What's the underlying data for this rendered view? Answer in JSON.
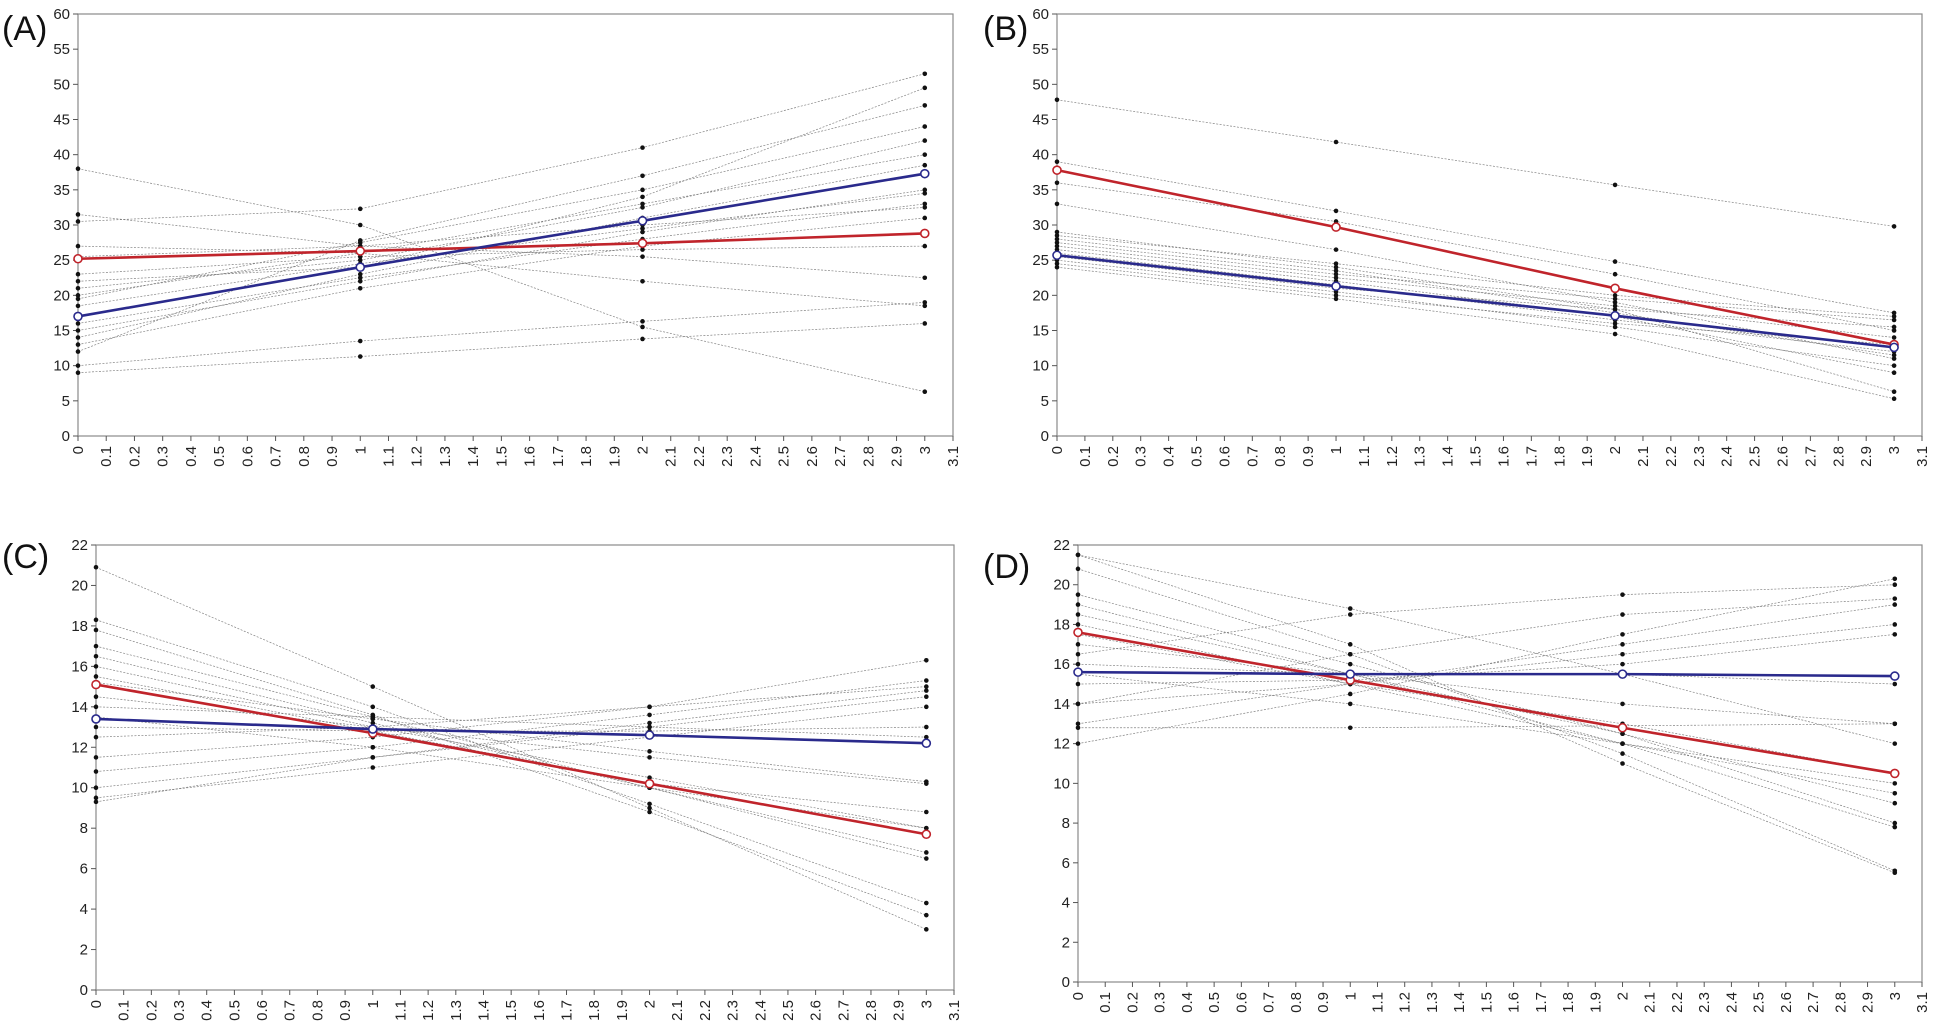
{
  "colors": {
    "red_series": "#c0242b",
    "blue_series": "#2a2a8c",
    "individual_lines": "#6e6e6e",
    "frame": "#8a8a8a"
  },
  "chart_data": [
    {
      "type": "line",
      "panel": "(A)",
      "title": "",
      "xlabel": "",
      "ylabel": "",
      "xlim": [
        0,
        3.1
      ],
      "ylim": [
        0,
        60
      ],
      "x_ticks": [
        "0",
        "0.1",
        "0.2",
        "0.3",
        "0.4",
        "0.5",
        "0.6",
        "0.7",
        "0.8",
        "0.9",
        "1",
        "1.1",
        "1.2",
        "1.3",
        "1.4",
        "1.5",
        "1.6",
        "1.7",
        "1.8",
        "1.9",
        "2",
        "2.1",
        "2.2",
        "2.3",
        "2.4",
        "2.5",
        "2.6",
        "2.7",
        "2.8",
        "2.9",
        "3",
        "3.1"
      ],
      "y_ticks": [
        "0",
        "5",
        "10",
        "15",
        "20",
        "25",
        "30",
        "35",
        "40",
        "45",
        "50",
        "55",
        "60"
      ],
      "x": [
        0,
        1,
        2,
        3
      ],
      "series": [
        {
          "color": "#c0242b",
          "values": [
            25.2,
            26.3,
            27.4,
            28.8
          ]
        },
        {
          "color": "#2a2a8c",
          "values": [
            17.0,
            24.0,
            30.6,
            37.3
          ]
        }
      ],
      "individual_trajectories": [
        [
          38.0,
          30.0,
          15.5,
          6.3
        ],
        [
          31.5,
          27.0,
          25.5,
          22.5
        ],
        [
          10.0,
          13.5,
          16.3,
          19.0
        ],
        [
          9.0,
          11.3,
          13.8,
          16.0
        ],
        [
          30.5,
          32.3,
          41.0,
          51.5
        ],
        [
          12.0,
          27.8,
          37.0,
          47.0
        ],
        [
          21.0,
          25.0,
          32.5,
          42.0
        ],
        [
          15.0,
          22.0,
          29.0,
          35.0
        ],
        [
          20.0,
          26.0,
          33.0,
          40.0
        ],
        [
          14.0,
          23.0,
          31.0,
          38.5
        ],
        [
          18.5,
          24.5,
          29.5,
          34.5
        ],
        [
          23.0,
          25.5,
          26.5,
          27.0
        ],
        [
          27.0,
          26.0,
          22.0,
          18.5
        ],
        [
          16.0,
          22.5,
          28.0,
          33.0
        ],
        [
          19.5,
          27.5,
          35.0,
          44.0
        ],
        [
          25.5,
          27.0,
          30.0,
          32.5
        ],
        [
          13.0,
          21.0,
          27.0,
          31.0
        ],
        [
          22.0,
          24.0,
          34.0,
          49.5
        ]
      ]
    },
    {
      "type": "line",
      "panel": "(B)",
      "title": "",
      "xlabel": "",
      "ylabel": "",
      "xlim": [
        0,
        3.1
      ],
      "ylim": [
        0,
        60
      ],
      "x_ticks": [
        "0",
        "0.1",
        "0.2",
        "0.3",
        "0.4",
        "0.5",
        "0.6",
        "0.7",
        "0.8",
        "0.9",
        "1",
        "1.1",
        "1.2",
        "1.3",
        "1.4",
        "1.5",
        "1.6",
        "1.7",
        "1.8",
        "1.9",
        "2",
        "2.1",
        "2.2",
        "2.3",
        "2.4",
        "2.5",
        "2.6",
        "2.7",
        "2.8",
        "2.9",
        "3",
        "3.1"
      ],
      "y_ticks": [
        "0",
        "5",
        "10",
        "15",
        "20",
        "25",
        "30",
        "35",
        "40",
        "45",
        "50",
        "55",
        "60"
      ],
      "x": [
        0,
        1,
        2,
        3
      ],
      "series": [
        {
          "color": "#c0242b",
          "values": [
            37.8,
            29.7,
            21.0,
            13.0
          ]
        },
        {
          "color": "#2a2a8c",
          "values": [
            25.7,
            21.3,
            17.1,
            12.6
          ]
        }
      ],
      "individual_trajectories": [
        [
          47.8,
          41.8,
          35.7,
          29.8
        ],
        [
          39.0,
          32.0,
          24.8,
          17.5
        ],
        [
          36.0,
          30.5,
          23.0,
          15.0
        ],
        [
          33.0,
          26.5,
          19.0,
          11.0
        ],
        [
          29.0,
          24.0,
          18.0,
          6.3
        ],
        [
          28.0,
          23.5,
          17.5,
          11.5
        ],
        [
          27.0,
          22.5,
          18.5,
          14.0
        ],
        [
          26.0,
          21.5,
          16.5,
          12.0
        ],
        [
          25.0,
          20.5,
          15.5,
          10.0
        ],
        [
          24.5,
          20.0,
          16.0,
          13.0
        ],
        [
          26.5,
          22.0,
          17.0,
          9.0
        ],
        [
          25.5,
          21.0,
          18.0,
          15.5
        ],
        [
          27.5,
          23.0,
          19.5,
          16.5
        ],
        [
          24.0,
          19.5,
          14.5,
          5.3
        ],
        [
          28.5,
          24.5,
          20.0,
          17.0
        ]
      ]
    },
    {
      "type": "line",
      "panel": "(C)",
      "title": "",
      "xlabel": "",
      "ylabel": "",
      "xlim": [
        0,
        3.1
      ],
      "ylim": [
        0,
        22
      ],
      "x_ticks": [
        "0",
        "0.1",
        "0.2",
        "0.3",
        "0.4",
        "0.5",
        "0.6",
        "0.7",
        "0.8",
        "0.9",
        "1",
        "1.1",
        "1.2",
        "1.3",
        "1.4",
        "1.5",
        "1.6",
        "1.7",
        "1.8",
        "1.9",
        "2",
        "2.1",
        "2.2",
        "2.3",
        "2.4",
        "2.5",
        "2.6",
        "2.7",
        "2.8",
        "2.9",
        "3",
        "3.1"
      ],
      "y_ticks": [
        "0",
        "2",
        "4",
        "6",
        "8",
        "10",
        "12",
        "14",
        "16",
        "18",
        "20",
        "22"
      ],
      "x": [
        0,
        1,
        2,
        3
      ],
      "series": [
        {
          "color": "#c0242b",
          "values": [
            15.1,
            12.7,
            10.2,
            7.7
          ]
        },
        {
          "color": "#2a2a8c",
          "values": [
            13.4,
            12.9,
            12.6,
            12.2
          ]
        }
      ],
      "individual_trajectories": [
        [
          20.9,
          15.0,
          9.0,
          3.0
        ],
        [
          18.3,
          14.0,
          9.2,
          4.3
        ],
        [
          17.8,
          13.6,
          8.8,
          3.7
        ],
        [
          17.0,
          13.5,
          10.0,
          6.5
        ],
        [
          16.5,
          13.2,
          10.0,
          6.8
        ],
        [
          16.0,
          13.0,
          10.5,
          8.0
        ],
        [
          15.5,
          12.8,
          10.2,
          8.8
        ],
        [
          14.5,
          13.0,
          11.5,
          10.2
        ],
        [
          13.0,
          12.8,
          12.8,
          13.0
        ],
        [
          12.5,
          13.0,
          14.0,
          15.0
        ],
        [
          11.5,
          12.5,
          14.0,
          16.3
        ],
        [
          10.8,
          12.0,
          13.6,
          15.3
        ],
        [
          10.0,
          11.5,
          13.0,
          14.5
        ],
        [
          9.5,
          11.0,
          12.5,
          14.0
        ],
        [
          9.3,
          11.5,
          13.2,
          14.8
        ],
        [
          14.0,
          13.5,
          13.0,
          12.5
        ],
        [
          13.5,
          12.0,
          10.0,
          8.0
        ],
        [
          15.2,
          13.4,
          11.8,
          10.3
        ]
      ]
    },
    {
      "type": "line",
      "panel": "(D)",
      "title": "",
      "xlabel": "",
      "ylabel": "",
      "xlim": [
        0,
        3.1
      ],
      "ylim": [
        0,
        22
      ],
      "x_ticks": [
        "0",
        "0.1",
        "0.2",
        "0.3",
        "0.4",
        "0.5",
        "0.6",
        "0.7",
        "0.8",
        "0.9",
        "1",
        "1.1",
        "1.2",
        "1.3",
        "1.4",
        "1.5",
        "1.6",
        "1.7",
        "1.8",
        "1.9",
        "2",
        "2.1",
        "2.2",
        "2.3",
        "2.4",
        "2.5",
        "2.6",
        "2.7",
        "2.8",
        "2.9",
        "3",
        "3.1"
      ],
      "y_ticks": [
        "0",
        "2",
        "4",
        "6",
        "8",
        "10",
        "12",
        "14",
        "16",
        "18",
        "20",
        "22"
      ],
      "x": [
        0,
        1,
        2,
        3
      ],
      "series": [
        {
          "color": "#c0242b",
          "values": [
            17.6,
            15.2,
            12.8,
            10.5
          ]
        },
        {
          "color": "#2a2a8c",
          "values": [
            15.6,
            15.5,
            15.5,
            15.4
          ]
        }
      ],
      "individual_trajectories": [
        [
          21.5,
          17.0,
          11.0,
          5.5
        ],
        [
          20.8,
          16.5,
          11.5,
          5.6
        ],
        [
          21.5,
          18.8,
          15.5,
          12.0
        ],
        [
          19.5,
          16.0,
          12.5,
          8.0
        ],
        [
          19.0,
          15.5,
          12.0,
          7.8
        ],
        [
          18.5,
          15.5,
          12.5,
          9.0
        ],
        [
          18.0,
          15.0,
          12.0,
          9.5
        ],
        [
          17.5,
          15.0,
          13.0,
          10.5
        ],
        [
          17.0,
          15.5,
          14.0,
          13.0
        ],
        [
          16.0,
          15.5,
          15.5,
          15.0
        ],
        [
          15.0,
          15.2,
          16.0,
          17.5
        ],
        [
          14.0,
          15.0,
          16.5,
          18.0
        ],
        [
          13.0,
          15.0,
          17.0,
          19.0
        ],
        [
          12.0,
          14.5,
          17.5,
          20.3
        ],
        [
          14.0,
          16.5,
          18.5,
          19.3
        ],
        [
          16.5,
          18.5,
          19.5,
          20.0
        ],
        [
          15.5,
          14.0,
          12.0,
          10.0
        ],
        [
          12.8,
          12.8,
          12.9,
          13.0
        ]
      ]
    }
  ]
}
